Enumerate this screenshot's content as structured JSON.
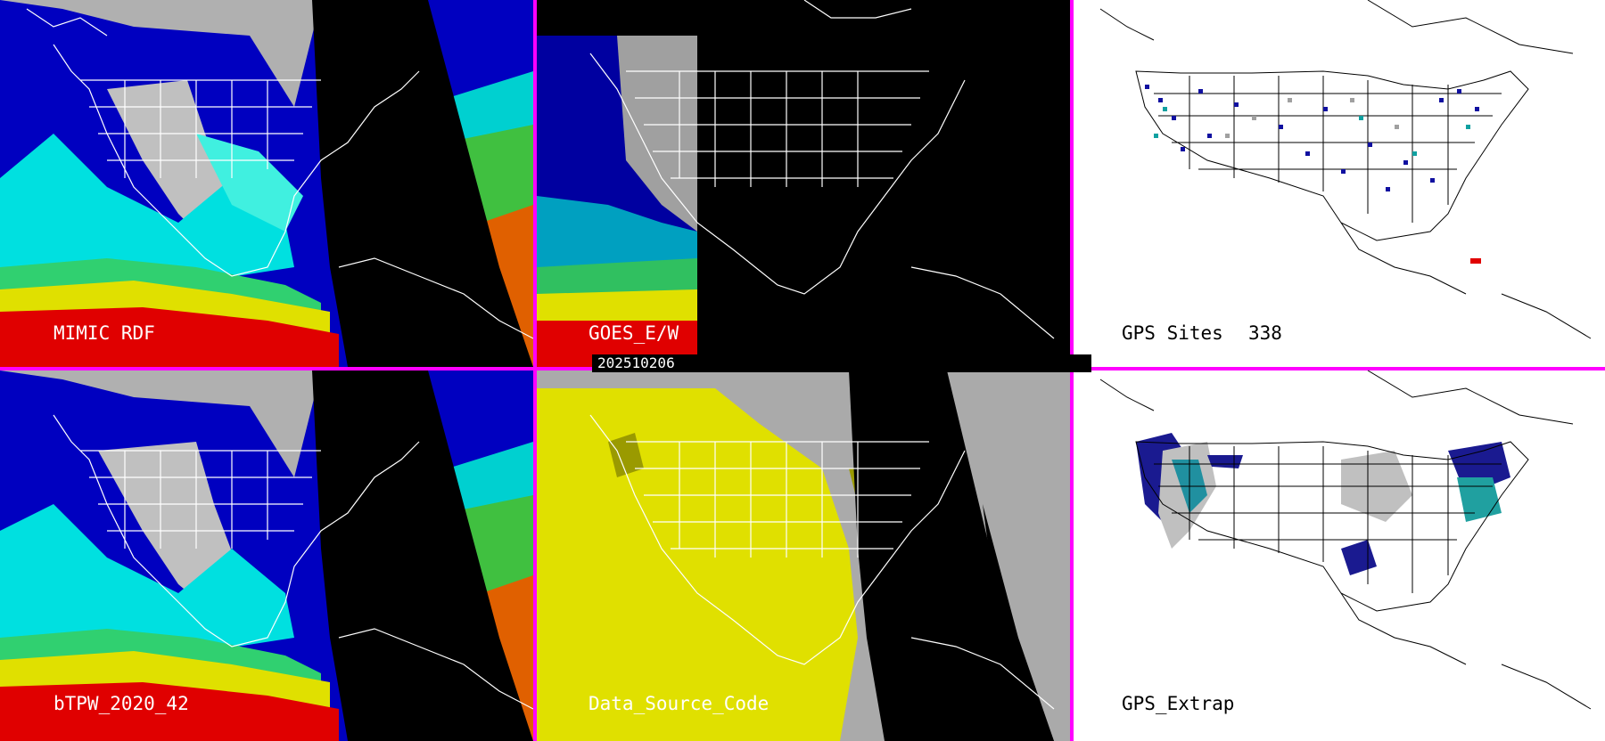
{
  "timestamp": "202510206",
  "panels": {
    "mimic": {
      "label": "MIMIC RDF"
    },
    "goes": {
      "label": "GOES_E/W"
    },
    "gps": {
      "label": "GPS Sites",
      "count": "338"
    },
    "btpw": {
      "label": "bTPW_2020_42"
    },
    "dsc": {
      "label": "Data_Source_Code"
    },
    "gpsx": {
      "label": "GPS_Extrap"
    }
  },
  "colors": {
    "divider": "#ff00ff",
    "night": "#000000",
    "map_land_line": "#ffffff",
    "dsc_yellow": "#e0e000",
    "dsc_gray": "#aaaaaa",
    "dsc_olive": "#9a9a00"
  }
}
